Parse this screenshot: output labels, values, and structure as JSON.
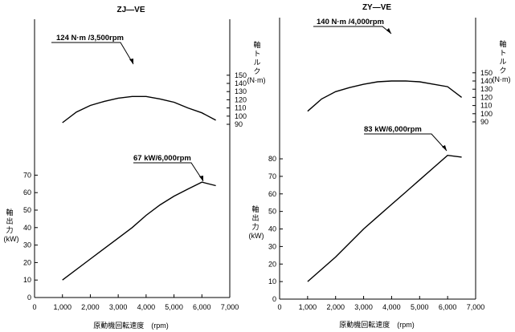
{
  "chart_data": [
    {
      "type": "line",
      "title": "ZJ—VE",
      "xlabel": "原動機回転速度　(rpm)",
      "x_ticks": [
        "0",
        "1,000",
        "2,000",
        "3,000",
        "4,000",
        "5,000",
        "6,000",
        "7,000"
      ],
      "x_range": [
        0,
        7000
      ],
      "power": {
        "ylabel_chars": [
          "軸",
          "出",
          "力"
        ],
        "ylabel_unit": "(kW)",
        "y_ticks": [
          "0",
          "10",
          "20",
          "30",
          "40",
          "50",
          "60",
          "70"
        ],
        "y_range": [
          0,
          75
        ],
        "x": [
          1000,
          2000,
          3000,
          3500,
          4000,
          4500,
          5000,
          5500,
          6000,
          6500
        ],
        "y": [
          10,
          22,
          34,
          40,
          47,
          53,
          58,
          62,
          66,
          64
        ],
        "annotation": "67 kW/6,000rpm"
      },
      "torque": {
        "ylabel_chars": [
          "軸",
          "ト",
          "ル",
          "ク"
        ],
        "ylabel_unit": "(N·m)",
        "y_ticks": [
          "90",
          "100",
          "110",
          "120",
          "130",
          "140",
          "150"
        ],
        "y_range": [
          85,
          150
        ],
        "x": [
          1000,
          1500,
          2000,
          2500,
          3000,
          3500,
          4000,
          4500,
          5000,
          5500,
          6000,
          6500
        ],
        "y": [
          92,
          105,
          113,
          118,
          122,
          124,
          124,
          121,
          117,
          110,
          104,
          95
        ],
        "annotation": "124 N·m /3,500rpm"
      }
    },
    {
      "type": "line",
      "title": "ZY—VE",
      "xlabel": "原動機回転速度　(rpm)",
      "x_ticks": [
        "0",
        "1,000",
        "2,000",
        "3,000",
        "4,000",
        "5,000",
        "6,000",
        "7,000"
      ],
      "x_range": [
        0,
        7000
      ],
      "power": {
        "ylabel_chars": [
          "軸",
          "出",
          "力"
        ],
        "ylabel_unit": "(kW)",
        "y_ticks": [
          "0",
          "10",
          "20",
          "30",
          "40",
          "50",
          "60",
          "70",
          "80"
        ],
        "y_range": [
          0,
          85
        ],
        "x": [
          1000,
          2000,
          3000,
          3500,
          4000,
          4500,
          5000,
          5500,
          6000,
          6500
        ],
        "y": [
          10,
          24,
          40,
          47,
          54,
          61,
          68,
          75,
          82,
          81
        ],
        "annotation": "83 kW/6,000rpm"
      },
      "torque": {
        "ylabel_chars": [
          "軸",
          "ト",
          "ル",
          "ク"
        ],
        "ylabel_unit": "(N·m)",
        "y_ticks": [
          "90",
          "100",
          "110",
          "120",
          "130",
          "140",
          "150"
        ],
        "y_range": [
          85,
          150
        ],
        "x": [
          1000,
          1500,
          2000,
          2500,
          3000,
          3500,
          4000,
          4500,
          5000,
          5500,
          6000,
          6500
        ],
        "y": [
          103,
          118,
          127,
          132,
          136,
          139,
          140,
          140,
          139,
          136,
          133,
          120
        ],
        "annotation": "140 N·m /4,000rpm"
      }
    }
  ]
}
